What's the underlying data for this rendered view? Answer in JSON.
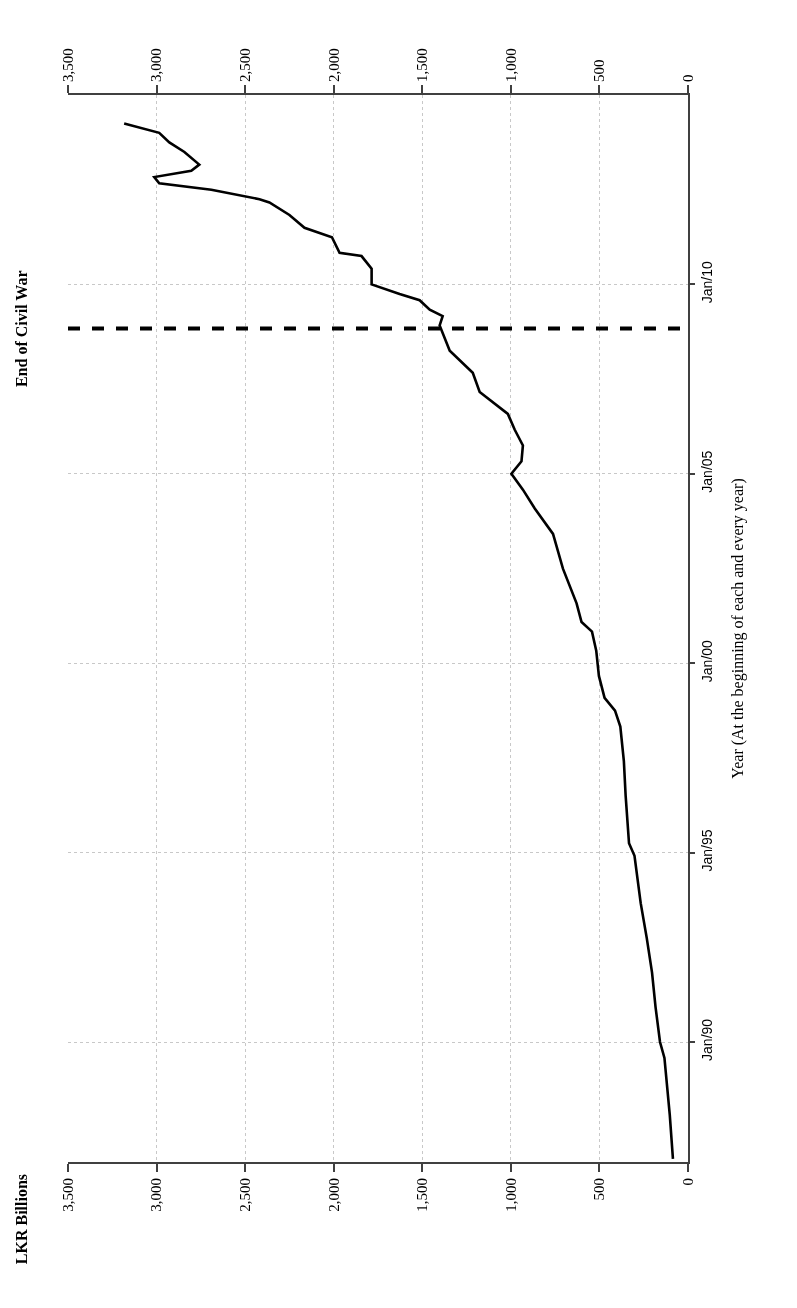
{
  "chart_data": {
    "type": "line",
    "orientation": "horizontal",
    "annotations": [
      "LKR Billions"
    ],
    "ylabel": "Year (At the beginning of each and every year)",
    "x": [
      "1986-12",
      "1988-02",
      "1989-08",
      "1990-01",
      "1990-12",
      "1991-11",
      "1992-10",
      "1993-09",
      "1994-12",
      "1995-04",
      "1996-07",
      "1997-06",
      "1998-05",
      "1998-10",
      "1999-02",
      "1999-09",
      "2000-05",
      "2000-11",
      "2001-02",
      "2001-08",
      "2002-07",
      "2003-06",
      "2004-02",
      "2004-08",
      "2005-01",
      "2005-05",
      "2005-10",
      "2006-03",
      "2006-08",
      "2007-03",
      "2007-09",
      "2008-04",
      "2008-12",
      "2009-03",
      "2009-05",
      "2009-08",
      "2009-10",
      "2010-01",
      "2010-06",
      "2010-10",
      "2010-11",
      "2011-04",
      "2011-07",
      "2011-11",
      "2012-03",
      "2012-04",
      "2012-07",
      "2012-09",
      "2012-11",
      "2013-01",
      "2013-03",
      "2013-07",
      "2013-10",
      "2014-01",
      "2014-04"
    ],
    "series": [
      {
        "color": "#000000",
        "values": [
          85,
          103,
          133,
          158,
          183,
          203,
          233,
          267,
          302,
          333,
          352,
          362,
          382,
          412,
          471,
          503,
          518,
          542,
          601,
          629,
          706,
          762,
          865,
          932,
          997,
          940,
          932,
          978,
          1017,
          1176,
          1215,
          1345,
          1402,
          1385,
          1458,
          1515,
          1628,
          1786,
          1786,
          1843,
          1967,
          2010,
          2165,
          2250,
          2363,
          2419,
          2691,
          2985,
          3013,
          2804,
          2759,
          2843,
          2928,
          2985,
          3183
        ]
      }
    ],
    "xlim": [
      3500,
      0
    ],
    "xticks": [
      {
        "value": 3500,
        "label": "3,500"
      },
      {
        "value": 3000,
        "label": "3,000"
      },
      {
        "value": 2500,
        "label": "2,500"
      },
      {
        "value": 2000,
        "label": "2,000"
      },
      {
        "value": 1500,
        "label": "1,500"
      },
      {
        "value": 1000,
        "label": "1,000"
      },
      500,
      0
    ],
    "x2lim": [
      3500,
      0
    ],
    "x2ticks": [
      {
        "value": 3500,
        "label": "3,500"
      },
      {
        "value": 3000,
        "label": "3,000"
      },
      {
        "value": 2500,
        "label": "2,500"
      },
      {
        "value": 2000,
        "label": "2,000"
      },
      {
        "value": 1500,
        "label": "1,500"
      },
      {
        "value": 1000,
        "label": "1,000"
      },
      500,
      0
    ],
    "ylim": [
      "1986-11",
      "2015-01"
    ],
    "yticks": [
      {
        "value": "1990-01",
        "label": "Jan/90"
      },
      {
        "value": "1995-01",
        "label": "Jan/95"
      },
      {
        "value": "2000-01",
        "label": "Jan/00"
      },
      {
        "value": "2005-01",
        "label": "Jan/05"
      },
      {
        "value": "2010-01",
        "label": "Jan/10"
      }
    ],
    "ref_lines": [
      {
        "axis": "y",
        "value": "2008-11",
        "label": "End of Civil War",
        "color": "#000000",
        "line_style": "dashed"
      }
    ],
    "grid": true,
    "marker": "none",
    "line_style": "solid"
  }
}
